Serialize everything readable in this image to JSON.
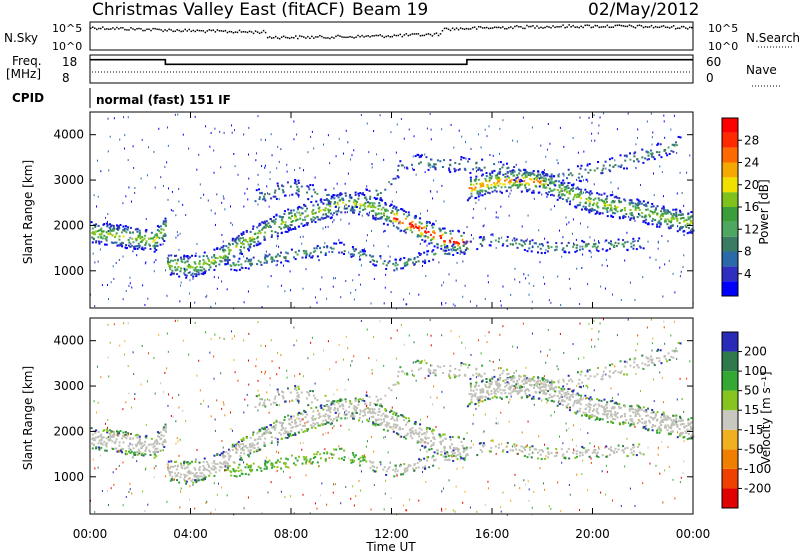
{
  "header": {
    "title": "Christmas Valley East (fitACF)",
    "beam": "Beam 19",
    "date": "02/May/2012"
  },
  "nsky_panel": {
    "left_label": "N.Sky",
    "left_ticks": [
      "10^5",
      "10^0"
    ],
    "right_label": "N.Search",
    "right_ticks": [
      "10^5",
      "10^0"
    ]
  },
  "freq_panel": {
    "left_label_1": "Freq.",
    "left_label_2": "[MHz]",
    "left_ticks": [
      "18",
      "8"
    ],
    "right_label": "Nave",
    "right_ticks": [
      "60",
      "0"
    ]
  },
  "cpid_panel": {
    "label": "CPID",
    "mode_text": "normal (fast) 151 IF"
  },
  "power_panel": {
    "ylabel": "Slant Range [km]",
    "colorbar_label": "Power [dB]",
    "colorbar_ticks": [
      "28",
      "24",
      "20",
      "16",
      "12",
      "8",
      "4"
    ],
    "colors": [
      "#0000ff",
      "#2f2fbf",
      "#2b6aa8",
      "#3a7c62",
      "#4ea760",
      "#3b9e3a",
      "#7fc21c",
      "#f0e000",
      "#f4a800",
      "#ff6a00",
      "#ff2a00",
      "#ff0000"
    ]
  },
  "velocity_panel": {
    "ylabel": "Slant Range [km]",
    "colorbar_label": "Velocity [m s⁻¹]",
    "colorbar_ticks": [
      "200",
      "100",
      "50",
      "15",
      "-15",
      "-50",
      "-100",
      "-200"
    ],
    "colors": [
      "#2a2ab8",
      "#2f7a4a",
      "#34a833",
      "#86c41f",
      "#c8c8c0",
      "#f0b020",
      "#f07f00",
      "#f04000",
      "#e00000"
    ],
    "ground_scatter_color": "#c0c0b8"
  },
  "xaxis": {
    "label": "Time UT",
    "ticks": [
      "00:00",
      "04:00",
      "08:00",
      "12:00",
      "16:00",
      "20:00",
      "00:00"
    ]
  },
  "chart_data": {
    "type": "heatmap",
    "x_range_hours": [
      0,
      24
    ],
    "y_range_km": [
      180,
      4500
    ],
    "y_ticks_km": [
      1000,
      2000,
      3000,
      4000
    ],
    "frequency_mhz": [
      {
        "from_hour": 0,
        "to_hour": 3,
        "value": 18
      },
      {
        "from_hour": 3,
        "to_hour": 15,
        "value": 16
      },
      {
        "from_hour": 15,
        "to_hour": 24,
        "value": 18
      }
    ],
    "nave": 12,
    "scatter_bands": [
      {
        "name": "ionospheric",
        "points": [
          [
            0.0,
            1850
          ],
          [
            1.0,
            1780
          ],
          [
            2.0,
            1700
          ],
          [
            2.5,
            1650
          ],
          [
            3.0,
            1950
          ],
          [
            3.0,
            1150
          ],
          [
            4.0,
            1080
          ],
          [
            5.0,
            1250
          ],
          [
            6.0,
            1600
          ],
          [
            7.0,
            1900
          ],
          [
            8.0,
            2150
          ],
          [
            9.0,
            2300
          ],
          [
            10.0,
            2500
          ],
          [
            11.0,
            2450
          ],
          [
            12.0,
            2200
          ],
          [
            13.0,
            1950
          ],
          [
            14.0,
            1700
          ],
          [
            15.0,
            1600
          ],
          [
            15.0,
            2800
          ],
          [
            16.0,
            2950
          ],
          [
            17.0,
            3000
          ],
          [
            18.0,
            2950
          ],
          [
            19.0,
            2700
          ],
          [
            20.0,
            2500
          ],
          [
            21.0,
            2400
          ],
          [
            22.0,
            2300
          ],
          [
            23.0,
            2150
          ],
          [
            24.0,
            2050
          ]
        ]
      },
      {
        "name": "lower",
        "points": [
          [
            5.5,
            1100
          ],
          [
            7.0,
            1250
          ],
          [
            8.5,
            1400
          ],
          [
            10.0,
            1500
          ],
          [
            11.0,
            1300
          ],
          [
            12.0,
            1100
          ],
          [
            16.0,
            1700
          ],
          [
            18.0,
            1500
          ],
          [
            20.0,
            1550
          ],
          [
            22.0,
            1600
          ]
        ]
      },
      {
        "name": "upper",
        "points": [
          [
            6.5,
            2600
          ],
          [
            8.0,
            2850
          ],
          [
            9.0,
            2700
          ],
          [
            10.0,
            2500
          ],
          [
            11.5,
            2700
          ],
          [
            12.5,
            3400
          ],
          [
            16.0,
            3300
          ],
          [
            18.0,
            3000
          ],
          [
            20.0,
            3200
          ],
          [
            23.5,
            3800
          ]
        ]
      }
    ]
  }
}
